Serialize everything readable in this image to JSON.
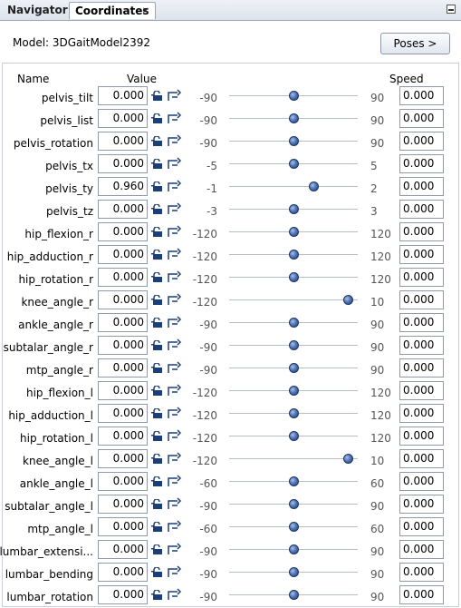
{
  "tabs": [
    {
      "label": "Navigator"
    },
    {
      "label": "Coordinates"
    }
  ],
  "model": {
    "label": "Model:  3DGaitModel2392"
  },
  "poses_button": "Poses >",
  "headers": {
    "name": "Name",
    "value": "Value",
    "speed": "Speed"
  },
  "coordinates": [
    {
      "name": "pelvis_tilt",
      "value": "0.000",
      "min": "-90",
      "max": "90",
      "level": 0.5,
      "speed": "0.000"
    },
    {
      "name": "pelvis_list",
      "value": "0.000",
      "min": "-90",
      "max": "90",
      "level": 0.5,
      "speed": "0.000"
    },
    {
      "name": "pelvis_rotation",
      "value": "0.000",
      "min": "-90",
      "max": "90",
      "level": 0.5,
      "speed": "0.000"
    },
    {
      "name": "pelvis_tx",
      "value": "0.000",
      "min": "-5",
      "max": "5",
      "level": 0.5,
      "speed": "0.000"
    },
    {
      "name": "pelvis_ty",
      "value": "0.960",
      "min": "-1",
      "max": "2",
      "level": 0.653,
      "speed": "0.000"
    },
    {
      "name": "pelvis_tz",
      "value": "0.000",
      "min": "-3",
      "max": "3",
      "level": 0.5,
      "speed": "0.000"
    },
    {
      "name": "hip_flexion_r",
      "value": "0.000",
      "min": "-120",
      "max": "120",
      "level": 0.5,
      "speed": "0.000"
    },
    {
      "name": "hip_adduction_r",
      "value": "0.000",
      "min": "-120",
      "max": "120",
      "level": 0.5,
      "speed": "0.000"
    },
    {
      "name": "hip_rotation_r",
      "value": "0.000",
      "min": "-120",
      "max": "120",
      "level": 0.5,
      "speed": "0.000"
    },
    {
      "name": "knee_angle_r",
      "value": "0.000",
      "min": "-120",
      "max": "10",
      "level": 0.923,
      "speed": "0.000"
    },
    {
      "name": "ankle_angle_r",
      "value": "0.000",
      "min": "-90",
      "max": "90",
      "level": 0.5,
      "speed": "0.000"
    },
    {
      "name": "subtalar_angle_r",
      "value": "0.000",
      "min": "-90",
      "max": "90",
      "level": 0.5,
      "speed": "0.000"
    },
    {
      "name": "mtp_angle_r",
      "value": "0.000",
      "min": "-90",
      "max": "90",
      "level": 0.5,
      "speed": "0.000"
    },
    {
      "name": "hip_flexion_l",
      "value": "0.000",
      "min": "-120",
      "max": "120",
      "level": 0.5,
      "speed": "0.000"
    },
    {
      "name": "hip_adduction_l",
      "value": "0.000",
      "min": "-120",
      "max": "120",
      "level": 0.5,
      "speed": "0.000"
    },
    {
      "name": "hip_rotation_l",
      "value": "0.000",
      "min": "-120",
      "max": "120",
      "level": 0.5,
      "speed": "0.000"
    },
    {
      "name": "knee_angle_l",
      "value": "0.000",
      "min": "-120",
      "max": "10",
      "level": 0.923,
      "speed": "0.000"
    },
    {
      "name": "ankle_angle_l",
      "value": "0.000",
      "min": "-60",
      "max": "60",
      "level": 0.5,
      "speed": "0.000"
    },
    {
      "name": "subtalar_angle_l",
      "value": "0.000",
      "min": "-90",
      "max": "90",
      "level": 0.5,
      "speed": "0.000"
    },
    {
      "name": "mtp_angle_l",
      "value": "0.000",
      "min": "-60",
      "max": "60",
      "level": 0.5,
      "speed": "0.000"
    },
    {
      "name": "lumbar_extensi...",
      "value": "0.000",
      "min": "-90",
      "max": "90",
      "level": 0.5,
      "speed": "0.000"
    },
    {
      "name": "lumbar_bending",
      "value": "0.000",
      "min": "-90",
      "max": "90",
      "level": 0.5,
      "speed": "0.000"
    },
    {
      "name": "lumbar_rotation",
      "value": "0.000",
      "min": "-90",
      "max": "90",
      "level": 0.5,
      "speed": "0.000"
    }
  ],
  "icons": {
    "lock": "lock-icon",
    "clamp": "clamp-icon",
    "close": "close-icon",
    "minimize": "minimize-icon"
  },
  "colors": {
    "slider_thumb": "#3f63a8",
    "tab_bar": "#dde3ec"
  }
}
